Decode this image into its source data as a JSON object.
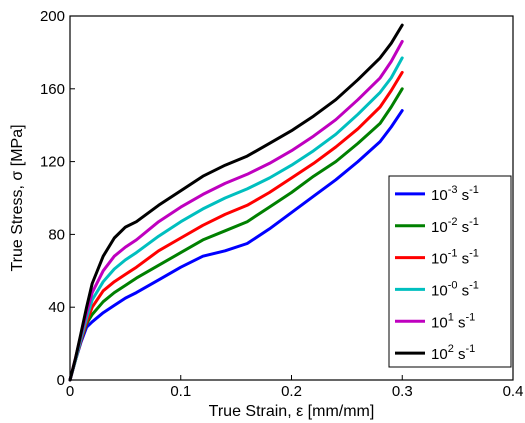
{
  "chart_data": {
    "type": "line",
    "xlabel": "True Strain, ε [mm/mm]",
    "ylabel": "True Stress, σ [MPa]",
    "xlim": [
      0,
      0.4
    ],
    "ylim": [
      0,
      200
    ],
    "x_ticks": [
      {
        "value": 0,
        "label": "0"
      },
      {
        "value": 0.1,
        "label": "0.1"
      },
      {
        "value": 0.2,
        "label": "0.2"
      },
      {
        "value": 0.3,
        "label": "0.3"
      },
      {
        "value": 0.4,
        "label": "0.4"
      }
    ],
    "y_ticks": [
      {
        "value": 0,
        "label": "0"
      },
      {
        "value": 40,
        "label": "40"
      },
      {
        "value": 80,
        "label": "80"
      },
      {
        "value": 120,
        "label": "120"
      },
      {
        "value": 160,
        "label": "160"
      },
      {
        "value": 200,
        "label": "200"
      }
    ],
    "grid": false,
    "legend_position": "right",
    "series": [
      {
        "base": "10",
        "exp": "-3",
        "unit": "s",
        "unit_exp": "-1",
        "color": "#0000ff",
        "x": [
          0,
          0.005,
          0.01,
          0.015,
          0.02,
          0.03,
          0.04,
          0.05,
          0.06,
          0.08,
          0.1,
          0.12,
          0.14,
          0.16,
          0.18,
          0.2,
          0.22,
          0.24,
          0.26,
          0.28,
          0.29,
          0.3
        ],
        "y": [
          0,
          11,
          21,
          29,
          32,
          37,
          41,
          45,
          48,
          55,
          62,
          68,
          71,
          75,
          83,
          92,
          101,
          110,
          120,
          131,
          139,
          148
        ]
      },
      {
        "base": "10",
        "exp": "-2",
        "unit": "s",
        "unit_exp": "-1",
        "color": "#008000",
        "x": [
          0,
          0.005,
          0.01,
          0.015,
          0.02,
          0.03,
          0.04,
          0.05,
          0.06,
          0.08,
          0.1,
          0.12,
          0.14,
          0.16,
          0.18,
          0.2,
          0.22,
          0.24,
          0.26,
          0.28,
          0.29,
          0.3
        ],
        "y": [
          0,
          11,
          22,
          31,
          36,
          43,
          48,
          52,
          56,
          63,
          70,
          77,
          82,
          87,
          95,
          103,
          112,
          120,
          130,
          141,
          150,
          160
        ]
      },
      {
        "base": "10",
        "exp": "-1",
        "unit": "s",
        "unit_exp": "-1",
        "color": "#ff0000",
        "x": [
          0,
          0.005,
          0.01,
          0.015,
          0.02,
          0.03,
          0.04,
          0.05,
          0.06,
          0.08,
          0.1,
          0.12,
          0.14,
          0.16,
          0.18,
          0.2,
          0.22,
          0.24,
          0.26,
          0.28,
          0.29,
          0.3
        ],
        "y": [
          0,
          11,
          22,
          32,
          40,
          49,
          54,
          58,
          62,
          71,
          78,
          85,
          91,
          96,
          103,
          111,
          119,
          128,
          138,
          150,
          159,
          169
        ]
      },
      {
        "base": "10",
        "exp": "-0",
        "unit": "s",
        "unit_exp": "-1",
        "color": "#00bfbf",
        "x": [
          0,
          0.005,
          0.01,
          0.015,
          0.02,
          0.03,
          0.04,
          0.05,
          0.06,
          0.08,
          0.1,
          0.12,
          0.14,
          0.16,
          0.18,
          0.2,
          0.22,
          0.24,
          0.26,
          0.28,
          0.29,
          0.3
        ],
        "y": [
          0,
          11,
          23,
          34,
          44,
          54,
          61,
          66,
          70,
          79,
          87,
          94,
          100,
          105,
          111,
          118,
          126,
          135,
          146,
          158,
          166,
          177
        ]
      },
      {
        "base": "10",
        "exp": "1",
        "unit": "s",
        "unit_exp": "-1",
        "color": "#bf00bf",
        "x": [
          0,
          0.005,
          0.01,
          0.015,
          0.02,
          0.03,
          0.04,
          0.05,
          0.06,
          0.08,
          0.1,
          0.12,
          0.14,
          0.16,
          0.18,
          0.2,
          0.22,
          0.24,
          0.26,
          0.28,
          0.29,
          0.3
        ],
        "y": [
          0,
          12,
          25,
          37,
          48,
          60,
          68,
          73,
          77,
          87,
          95,
          102,
          108,
          113,
          119,
          126,
          134,
          143,
          154,
          166,
          175,
          186
        ]
      },
      {
        "base": "10",
        "exp": "2",
        "unit": "s",
        "unit_exp": "-1",
        "color": "#000000",
        "x": [
          0,
          0.005,
          0.01,
          0.015,
          0.02,
          0.03,
          0.04,
          0.05,
          0.06,
          0.08,
          0.1,
          0.12,
          0.14,
          0.16,
          0.18,
          0.2,
          0.22,
          0.24,
          0.26,
          0.28,
          0.29,
          0.3
        ],
        "y": [
          0,
          12,
          26,
          40,
          53,
          68,
          78,
          84,
          87,
          96,
          104,
          112,
          118,
          123,
          130,
          137,
          145,
          154,
          165,
          177,
          185,
          195
        ]
      }
    ]
  }
}
